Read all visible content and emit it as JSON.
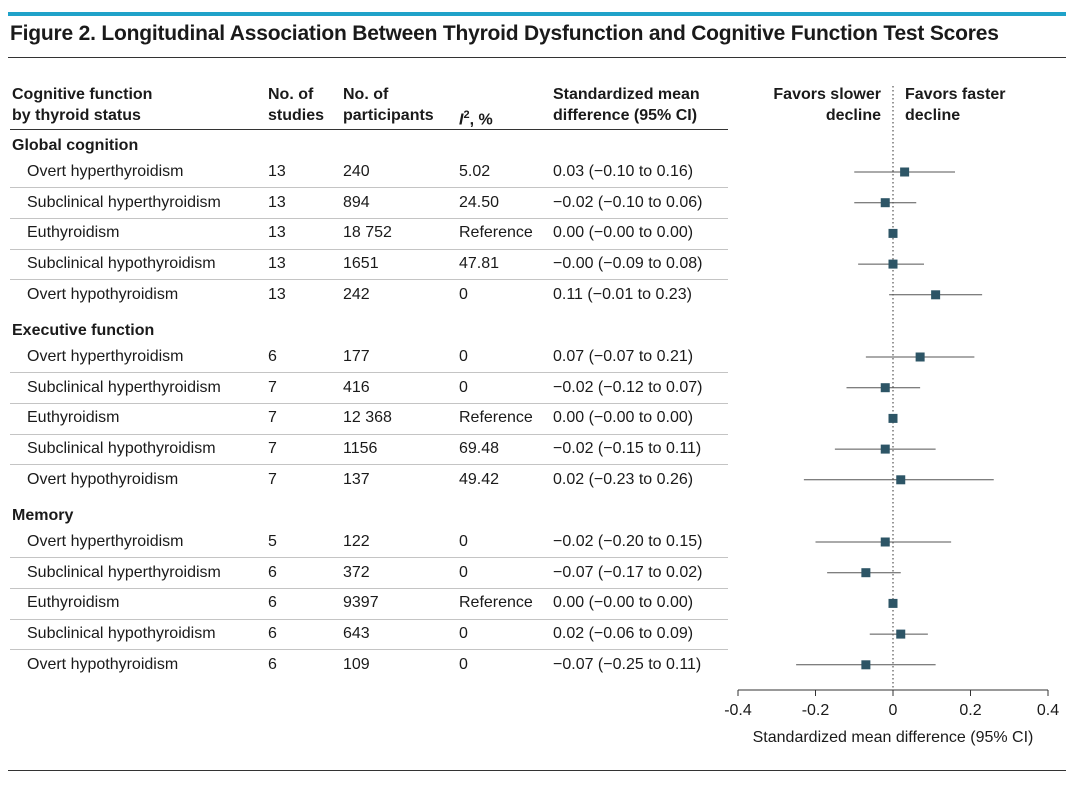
{
  "figure": {
    "title": "Figure 2. Longitudinal Association Between Thyroid Dysfunction and Cognitive Function Test Scores",
    "accent_color": "#1fa2c9"
  },
  "table": {
    "headers": {
      "col1": [
        "Cognitive function",
        "by thyroid status"
      ],
      "col2": [
        "No. of",
        "studies"
      ],
      "col3": [
        "No. of",
        "participants"
      ],
      "col4_italic": "I",
      "col4_sup": "2",
      "col4_rest": ", %",
      "col5": [
        "Standardized mean",
        "difference (95% CI)"
      ]
    },
    "sections": [
      {
        "name": "Global cognition",
        "rows": [
          {
            "label": "Overt hyperthyroidism",
            "studies": "13",
            "participants": "240",
            "i2": "5.02",
            "smd": "0.03 (−0.10 to 0.16)"
          },
          {
            "label": "Subclinical hyperthyroidism",
            "studies": "13",
            "participants": "894",
            "i2": "24.50",
            "smd": "−0.02 (−0.10 to 0.06)"
          },
          {
            "label": "Euthyroidism",
            "studies": "13",
            "participants": "18 752",
            "i2": "Reference",
            "smd": "0.00 (−0.00 to 0.00)"
          },
          {
            "label": "Subclinical hypothyroidism",
            "studies": "13",
            "participants": "1651",
            "i2": "47.81",
            "smd": "−0.00 (−0.09 to 0.08)"
          },
          {
            "label": "Overt hypothyroidism",
            "studies": "13",
            "participants": "242",
            "i2": "0",
            "smd": "0.11 (−0.01 to 0.23)"
          }
        ]
      },
      {
        "name": "Executive function",
        "rows": [
          {
            "label": "Overt hyperthyroidism",
            "studies": "6",
            "participants": "177",
            "i2": "0",
            "smd": "0.07 (−0.07 to 0.21)"
          },
          {
            "label": "Subclinical hyperthyroidism",
            "studies": "7",
            "participants": "416",
            "i2": "0",
            "smd": "−0.02 (−0.12 to 0.07)"
          },
          {
            "label": "Euthyroidism",
            "studies": "7",
            "participants": "12 368",
            "i2": "Reference",
            "smd": "0.00 (−0.00 to 0.00)"
          },
          {
            "label": "Subclinical hypothyroidism",
            "studies": "7",
            "participants": "1156",
            "i2": "69.48",
            "smd": "−0.02 (−0.15 to 0.11)"
          },
          {
            "label": "Overt hypothyroidism",
            "studies": "7",
            "participants": "137",
            "i2": "49.42",
            "smd": "0.02 (−0.23 to 0.26)"
          }
        ]
      },
      {
        "name": "Memory",
        "rows": [
          {
            "label": "Overt hyperthyroidism",
            "studies": "5",
            "participants": "122",
            "i2": "0",
            "smd": "−0.02 (−0.20 to 0.15)"
          },
          {
            "label": "Subclinical hyperthyroidism",
            "studies": "6",
            "participants": "372",
            "i2": "0",
            "smd": "−0.07 (−0.17 to 0.02)"
          },
          {
            "label": "Euthyroidism",
            "studies": "6",
            "participants": "9397",
            "i2": "Reference",
            "smd": "0.00 (−0.00 to 0.00)"
          },
          {
            "label": "Subclinical hypothyroidism",
            "studies": "6",
            "participants": "643",
            "i2": "0",
            "smd": "0.02 (−0.06 to 0.09)"
          },
          {
            "label": "Overt hypothyroidism",
            "studies": "6",
            "participants": "109",
            "i2": "0",
            "smd": "−0.07 (−0.25 to 0.11)"
          }
        ]
      }
    ]
  },
  "chart_data": {
    "type": "forest",
    "xlabel": "Standardized mean difference (95% CI)",
    "xlim": [
      -0.4,
      0.4
    ],
    "ticks": [
      -0.4,
      -0.2,
      0,
      0.2,
      0.4
    ],
    "tick_labels": [
      "-0.4",
      "-0.2",
      "0",
      "0.2",
      "0.4"
    ],
    "reference_line": 0,
    "favor_left": [
      "Favors slower",
      "decline"
    ],
    "favor_right": [
      "Favors faster",
      "decline"
    ],
    "marker_color": "#2d5566",
    "series": [
      {
        "name": "Global cognition",
        "points": [
          {
            "label": "Overt hyperthyroidism",
            "est": 0.03,
            "lo": -0.1,
            "hi": 0.16
          },
          {
            "label": "Subclinical hyperthyroidism",
            "est": -0.02,
            "lo": -0.1,
            "hi": 0.06
          },
          {
            "label": "Euthyroidism",
            "est": 0.0,
            "lo": -0.0,
            "hi": 0.0
          },
          {
            "label": "Subclinical hypothyroidism",
            "est": -0.0,
            "lo": -0.09,
            "hi": 0.08
          },
          {
            "label": "Overt hypothyroidism",
            "est": 0.11,
            "lo": -0.01,
            "hi": 0.23
          }
        ]
      },
      {
        "name": "Executive function",
        "points": [
          {
            "label": "Overt hyperthyroidism",
            "est": 0.07,
            "lo": -0.07,
            "hi": 0.21
          },
          {
            "label": "Subclinical hyperthyroidism",
            "est": -0.02,
            "lo": -0.12,
            "hi": 0.07
          },
          {
            "label": "Euthyroidism",
            "est": 0.0,
            "lo": -0.0,
            "hi": 0.0
          },
          {
            "label": "Subclinical hypothyroidism",
            "est": -0.02,
            "lo": -0.15,
            "hi": 0.11
          },
          {
            "label": "Overt hypothyroidism",
            "est": 0.02,
            "lo": -0.23,
            "hi": 0.26
          }
        ]
      },
      {
        "name": "Memory",
        "points": [
          {
            "label": "Overt hyperthyroidism",
            "est": -0.02,
            "lo": -0.2,
            "hi": 0.15
          },
          {
            "label": "Subclinical hyperthyroidism",
            "est": -0.07,
            "lo": -0.17,
            "hi": 0.02
          },
          {
            "label": "Euthyroidism",
            "est": 0.0,
            "lo": -0.0,
            "hi": 0.0
          },
          {
            "label": "Subclinical hypothyroidism",
            "est": 0.02,
            "lo": -0.06,
            "hi": 0.09
          },
          {
            "label": "Overt hypothyroidism",
            "est": -0.07,
            "lo": -0.25,
            "hi": 0.11
          }
        ]
      }
    ]
  }
}
